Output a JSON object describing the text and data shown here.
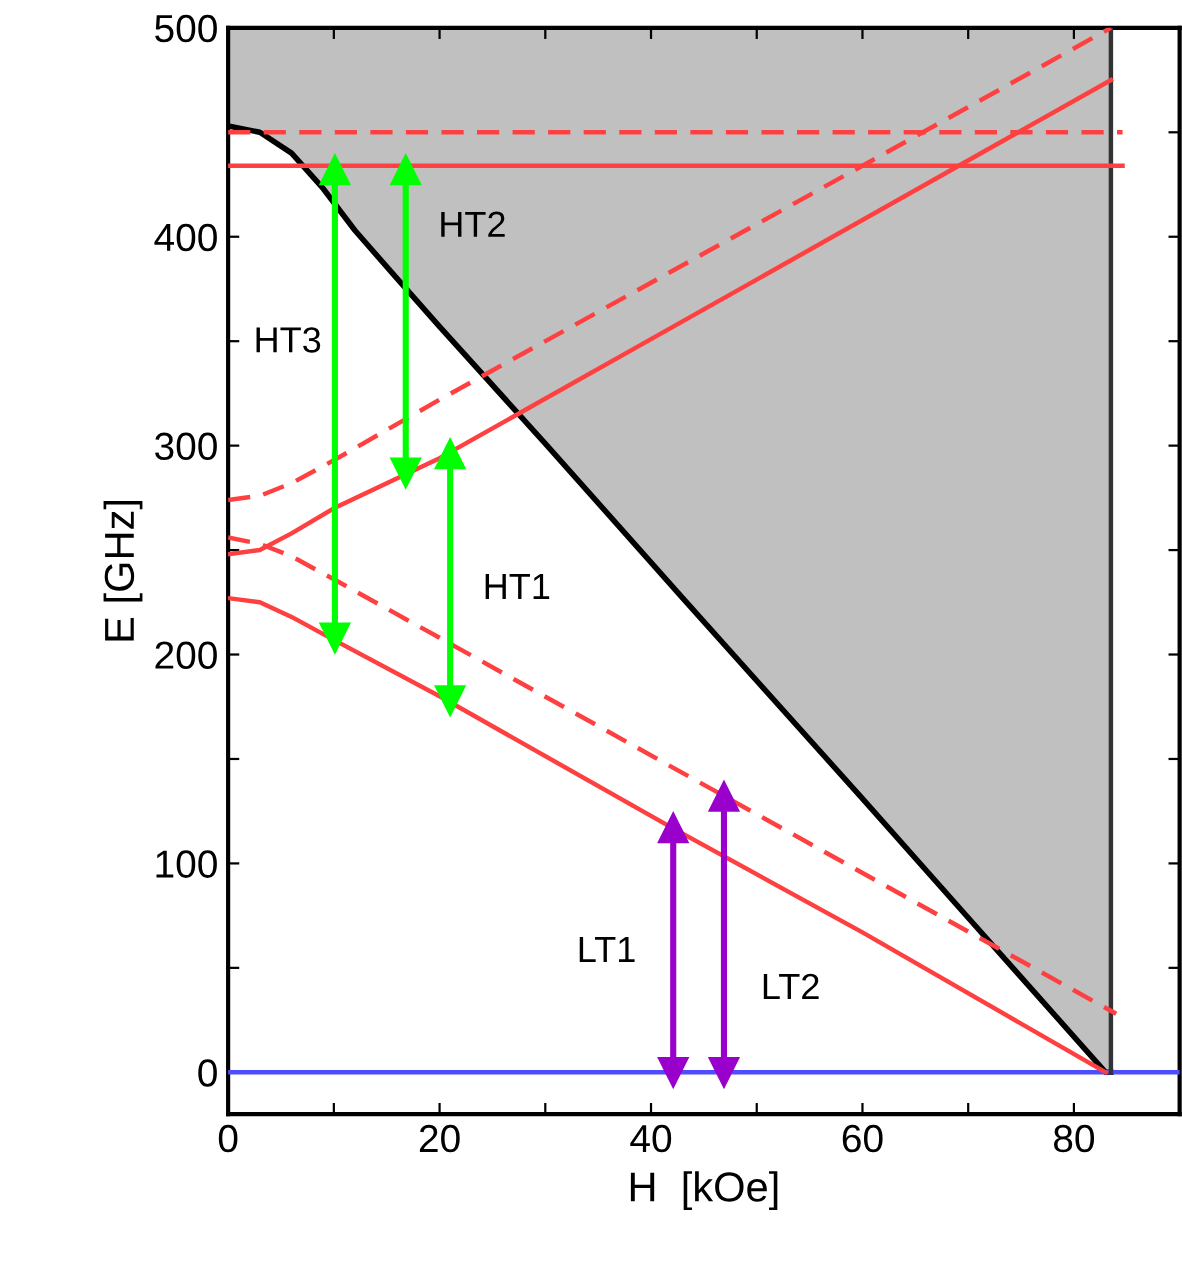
{
  "chart_data": {
    "type": "line",
    "xlabel": "H  [kOe]",
    "ylabel": "E [GHz]",
    "xlim": [
      0,
      90
    ],
    "ylim": [
      -20,
      500
    ],
    "xticks": [
      0,
      {
        "value": 10,
        "label": null
      },
      20,
      {
        "value": 30,
        "label": null
      },
      40,
      {
        "value": 50,
        "label": null
      },
      60,
      {
        "value": 70,
        "label": null
      },
      80,
      {
        "value": 90,
        "label": null
      }
    ],
    "yticks": [
      0,
      {
        "value": 50,
        "label": null
      },
      100,
      {
        "value": 150,
        "label": null
      },
      200,
      {
        "value": 250,
        "label": null
      },
      300,
      {
        "value": 350,
        "label": null
      },
      400,
      {
        "value": 450,
        "label": null
      },
      500
    ],
    "grid": false,
    "series": [
      {
        "color": "#000000",
        "line_style": "solid",
        "marker": "none",
        "x": [
          0,
          3,
          6,
          9,
          12,
          15.8,
          20,
          30,
          43,
          60,
          70,
          83,
          83.5
        ],
        "values": [
          453,
          450,
          440,
          423,
          403,
          381,
          357,
          301,
          227,
          131,
          74,
          0,
          0
        ],
        "lower": [
          453,
          450,
          440,
          423,
          403,
          381,
          357,
          301,
          227,
          131,
          74,
          0,
          0
        ],
        "upper": [
          500,
          500,
          500,
          500,
          500,
          500,
          500,
          500,
          500,
          500,
          500,
          500,
          500
        ]
      },
      {
        "type": "line",
        "color": "#4d4dff",
        "line_style": "solid",
        "marker": "none",
        "x": [
          0,
          90
        ],
        "values": [
          0,
          0
        ]
      },
      {
        "color": "#333333",
        "line_style": "solid",
        "marker": "none",
        "x": [
          83.5,
          83.5
        ],
        "values": [
          0,
          500
        ]
      },
      {
        "color": "#ff4040",
        "line_style": "solid",
        "marker": "none",
        "x": [
          0,
          84.6
        ],
        "values": [
          434,
          434
        ]
      },
      {
        "color": "#ff4040",
        "line_style": "dashed",
        "marker": "none",
        "x": [
          0,
          84.6
        ],
        "values": [
          450,
          450
        ]
      },
      {
        "color": "#ff4040",
        "line_style": "solid",
        "marker": "none",
        "x": [
          0,
          3,
          6,
          10,
          20,
          40,
          60,
          83.5
        ],
        "values": [
          248,
          250,
          258,
          270,
          294,
          351,
          408,
          475
        ]
      },
      {
        "color": "#ff4040",
        "line_style": "dashed",
        "marker": "none",
        "x": [
          0,
          3,
          6,
          10,
          20,
          40,
          60,
          83.5
        ],
        "values": [
          274,
          276,
          282,
          293,
          322,
          378,
          434,
          500
        ]
      },
      {
        "color": "#ff4040",
        "line_style": "solid",
        "marker": "none",
        "x": [
          0,
          3,
          6,
          10,
          20,
          42,
          60,
          83
        ],
        "values": [
          227,
          225,
          218,
          207,
          180,
          117,
          67,
          0
        ]
      },
      {
        "color": "#ff4040",
        "line_style": "dashed",
        "marker": "none",
        "x": [
          0,
          3,
          6,
          10,
          20,
          47,
          84
        ],
        "values": [
          256,
          253,
          247,
          236,
          208,
          132,
          28
        ]
      },
      {
        "name": "HT3",
        "color": "#00ff00",
        "line_style": "solid",
        "marker": "triangle",
        "x": [
          10.1,
          10.1
        ],
        "values": [
          208,
          432
        ]
      },
      {
        "name": "HT2",
        "color": "#00ff00",
        "line_style": "solid",
        "marker": "triangle",
        "x": [
          16.8,
          16.8
        ],
        "values": [
          287,
          432
        ]
      },
      {
        "name": "HT1",
        "color": "#00ff00",
        "line_style": "solid",
        "marker": "triangle",
        "x": [
          21,
          21
        ],
        "values": [
          178,
          296
        ]
      },
      {
        "name": "LT1",
        "color": "#9900cc",
        "line_style": "solid",
        "marker": "triangle",
        "x": [
          42.1,
          42.1
        ],
        "values": [
          0,
          117
        ]
      },
      {
        "name": "LT2",
        "color": "#9900cc",
        "line_style": "solid",
        "marker": "triangle",
        "x": [
          46.9,
          46.9
        ],
        "values": [
          0,
          132
        ]
      }
    ]
  }
}
